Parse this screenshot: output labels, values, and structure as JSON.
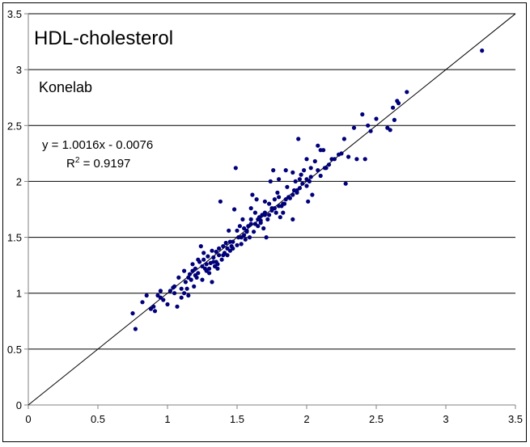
{
  "chart_data": {
    "type": "scatter",
    "title": "HDL-cholesterol",
    "subtitle": "Konelab",
    "xlabel": "",
    "ylabel": "",
    "xlim": [
      0,
      3.5
    ],
    "ylim": [
      0,
      3.5
    ],
    "x_ticks": [
      "0",
      "0.5",
      "1",
      "1.5",
      "2",
      "2.5",
      "3",
      "3.5"
    ],
    "y_ticks": [
      "0",
      "0.5",
      "1",
      "1.5",
      "2",
      "2.5",
      "3",
      "3.5"
    ],
    "grid": "horizontal",
    "legend": "none",
    "regression_equation": "y = 1.0016x - 0.0076",
    "r_squared_label": "R",
    "r_squared_exponent": "2",
    "r_squared_value": " = 0.9197",
    "reference_line": "y = x",
    "colors": {
      "points": "#00007a",
      "line": "#000000",
      "grid": "#000000",
      "axis": "#808080"
    },
    "points": [
      [
        0.75,
        0.82
      ],
      [
        0.77,
        0.68
      ],
      [
        0.82,
        0.92
      ],
      [
        0.85,
        0.98
      ],
      [
        0.88,
        0.86
      ],
      [
        0.9,
        0.88
      ],
      [
        0.91,
        0.84
      ],
      [
        0.93,
        0.98
      ],
      [
        0.95,
        1.02
      ],
      [
        0.97,
        0.94
      ],
      [
        1.0,
        0.9
      ],
      [
        1.02,
        1.02
      ],
      [
        1.04,
        1.05
      ],
      [
        1.05,
        1.0
      ],
      [
        1.07,
        0.88
      ],
      [
        1.08,
        1.14
      ],
      [
        1.1,
        0.96
      ],
      [
        1.1,
        1.04
      ],
      [
        1.12,
        1.0
      ],
      [
        1.13,
        1.1
      ],
      [
        1.14,
        1.04
      ],
      [
        1.15,
        0.98
      ],
      [
        1.16,
        1.17
      ],
      [
        1.17,
        1.12
      ],
      [
        1.18,
        1.2
      ],
      [
        1.19,
        1.06
      ],
      [
        1.2,
        1.16
      ],
      [
        1.21,
        1.14
      ],
      [
        1.22,
        1.18
      ],
      [
        1.23,
        1.28
      ],
      [
        1.24,
        1.42
      ],
      [
        1.25,
        1.12
      ],
      [
        1.26,
        1.3
      ],
      [
        1.27,
        1.22
      ],
      [
        1.28,
        1.26
      ],
      [
        1.29,
        1.33
      ],
      [
        1.3,
        1.18
      ],
      [
        1.31,
        1.27
      ],
      [
        1.32,
        1.1
      ],
      [
        1.33,
        1.32
      ],
      [
        1.34,
        1.24
      ],
      [
        1.35,
        1.37
      ],
      [
        1.36,
        1.22
      ],
      [
        1.37,
        1.4
      ],
      [
        1.38,
        1.82
      ],
      [
        1.39,
        1.3
      ],
      [
        1.4,
        1.34
      ],
      [
        1.42,
        1.45
      ],
      [
        1.43,
        1.34
      ],
      [
        1.44,
        1.56
      ],
      [
        1.45,
        1.38
      ],
      [
        1.46,
        1.42
      ],
      [
        1.47,
        1.4
      ],
      [
        1.48,
        1.75
      ],
      [
        1.49,
        2.12
      ],
      [
        1.5,
        1.43
      ],
      [
        1.51,
        1.5
      ],
      [
        1.52,
        1.6
      ],
      [
        1.53,
        1.44
      ],
      [
        1.54,
        1.66
      ],
      [
        1.55,
        1.52
      ],
      [
        1.56,
        1.48
      ],
      [
        1.57,
        1.55
      ],
      [
        1.58,
        1.6
      ],
      [
        1.59,
        1.5
      ],
      [
        1.6,
        1.66
      ],
      [
        1.61,
        1.88
      ],
      [
        1.62,
        1.55
      ],
      [
        1.63,
        1.72
      ],
      [
        1.64,
        1.84
      ],
      [
        1.65,
        1.6
      ],
      [
        1.66,
        1.68
      ],
      [
        1.67,
        1.63
      ],
      [
        1.68,
        1.7
      ],
      [
        1.69,
        1.58
      ],
      [
        1.7,
        1.72
      ],
      [
        1.71,
        1.5
      ],
      [
        1.72,
        1.66
      ],
      [
        1.73,
        1.8
      ],
      [
        1.74,
        2.0
      ],
      [
        1.75,
        1.76
      ],
      [
        1.76,
        2.1
      ],
      [
        1.77,
        1.84
      ],
      [
        1.78,
        1.72
      ],
      [
        1.79,
        1.9
      ],
      [
        1.8,
        2.02
      ],
      [
        1.81,
        1.68
      ],
      [
        1.82,
        1.78
      ],
      [
        1.83,
        1.72
      ],
      [
        1.84,
        1.8
      ],
      [
        1.85,
        2.1
      ],
      [
        1.86,
        1.95
      ],
      [
        1.88,
        1.85
      ],
      [
        1.9,
        1.66
      ],
      [
        1.91,
        1.92
      ],
      [
        1.92,
        2.0
      ],
      [
        1.93,
        1.9
      ],
      [
        1.94,
        2.38
      ],
      [
        1.95,
        2.02
      ],
      [
        1.96,
        2.06
      ],
      [
        1.98,
        2.1
      ],
      [
        2.0,
        1.96
      ],
      [
        2.01,
        1.82
      ],
      [
        2.02,
        2.0
      ],
      [
        2.03,
        2.12
      ],
      [
        2.04,
        1.88
      ],
      [
        2.06,
        2.18
      ],
      [
        2.08,
        2.32
      ],
      [
        2.1,
        2.05
      ],
      [
        2.12,
        2.28
      ],
      [
        2.14,
        2.12
      ],
      [
        2.16,
        2.15
      ],
      [
        2.2,
        2.2
      ],
      [
        2.25,
        2.25
      ],
      [
        2.27,
        2.38
      ],
      [
        2.3,
        2.22
      ],
      [
        2.34,
        2.48
      ],
      [
        2.36,
        2.2
      ],
      [
        2.4,
        2.6
      ],
      [
        2.42,
        2.2
      ],
      [
        2.44,
        2.5
      ],
      [
        2.46,
        2.45
      ],
      [
        2.5,
        2.56
      ],
      [
        2.58,
        2.48
      ],
      [
        2.6,
        2.46
      ],
      [
        2.62,
        2.66
      ],
      [
        2.63,
        2.55
      ],
      [
        2.65,
        2.72
      ],
      [
        2.66,
        2.7
      ],
      [
        2.72,
        2.8
      ],
      [
        3.26,
        3.17
      ],
      [
        1.3,
        1.22
      ],
      [
        1.35,
        1.28
      ],
      [
        1.4,
        1.42
      ],
      [
        1.45,
        1.46
      ],
      [
        1.55,
        1.58
      ],
      [
        1.6,
        1.62
      ],
      [
        1.65,
        1.66
      ],
      [
        1.7,
        1.7
      ],
      [
        1.75,
        1.74
      ],
      [
        1.8,
        1.78
      ],
      [
        1.85,
        1.84
      ],
      [
        1.9,
        1.88
      ],
      [
        1.95,
        1.94
      ],
      [
        2.0,
        2.02
      ],
      [
        1.25,
        1.24
      ],
      [
        1.15,
        1.14
      ],
      [
        1.05,
        1.06
      ],
      [
        0.95,
        0.96
      ],
      [
        1.2,
        1.22
      ],
      [
        1.33,
        1.28
      ],
      [
        1.37,
        1.34
      ],
      [
        1.43,
        1.4
      ],
      [
        1.47,
        1.46
      ],
      [
        1.53,
        1.5
      ],
      [
        1.57,
        1.56
      ],
      [
        1.63,
        1.62
      ],
      [
        1.67,
        1.65
      ],
      [
        1.73,
        1.7
      ],
      [
        1.77,
        1.76
      ],
      [
        1.83,
        1.8
      ],
      [
        1.87,
        1.86
      ],
      [
        1.93,
        1.92
      ],
      [
        1.97,
        1.98
      ],
      [
        2.03,
        2.04
      ],
      [
        2.08,
        2.1
      ],
      [
        2.13,
        2.12
      ],
      [
        2.18,
        2.2
      ],
      [
        2.23,
        2.24
      ],
      [
        2.28,
        1.98
      ],
      [
        1.26,
        1.36
      ],
      [
        1.28,
        1.2
      ],
      [
        1.32,
        1.38
      ],
      [
        1.36,
        1.26
      ],
      [
        1.41,
        1.36
      ],
      [
        1.5,
        1.56
      ],
      [
        1.6,
        1.76
      ],
      [
        1.7,
        1.82
      ],
      [
        1.8,
        1.86
      ],
      [
        1.9,
        2.08
      ],
      [
        2.0,
        2.2
      ],
      [
        2.1,
        2.28
      ],
      [
        1.12,
        1.2
      ],
      [
        1.18,
        1.26
      ],
      [
        1.22,
        1.3
      ]
    ]
  }
}
